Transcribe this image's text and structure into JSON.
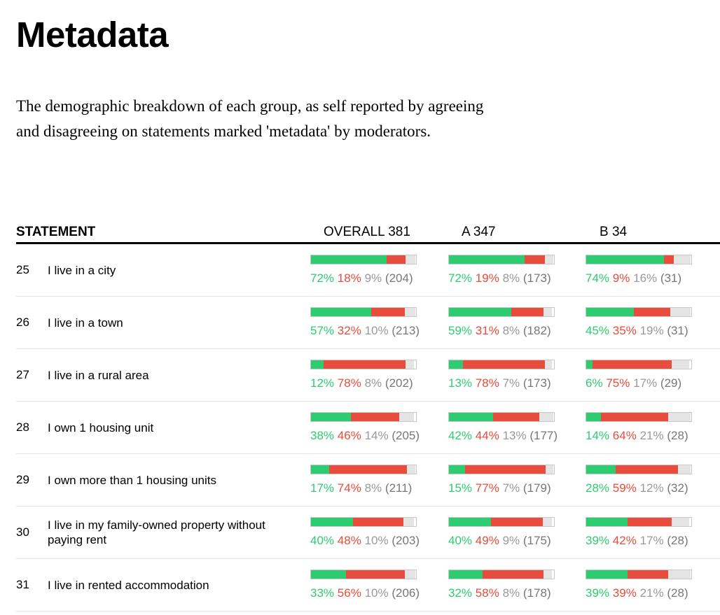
{
  "title": "Metadata",
  "intro": "The demographic breakdown of each group, as self reported by agreeing and disagreeing on statements marked 'metadata' by moderators.",
  "columns": {
    "statement": "STATEMENT",
    "groups": [
      "OVERALL 381",
      "A 347",
      "B 34"
    ]
  },
  "colors": {
    "agree": "#2ecc71",
    "disagree": "#e74c3c",
    "pass": "#e4e4e4"
  },
  "rows": [
    {
      "num": "25",
      "text": "I live in a city",
      "groups": [
        {
          "agree": 72,
          "disagree": 18,
          "pass": 9,
          "count": 204
        },
        {
          "agree": 72,
          "disagree": 19,
          "pass": 8,
          "count": 173
        },
        {
          "agree": 74,
          "disagree": 9,
          "pass": 16,
          "count": 31
        }
      ]
    },
    {
      "num": "26",
      "text": "I live in a town",
      "groups": [
        {
          "agree": 57,
          "disagree": 32,
          "pass": 10,
          "count": 213
        },
        {
          "agree": 59,
          "disagree": 31,
          "pass": 8,
          "count": 182
        },
        {
          "agree": 45,
          "disagree": 35,
          "pass": 19,
          "count": 31
        }
      ]
    },
    {
      "num": "27",
      "text": "I live in a rural area",
      "groups": [
        {
          "agree": 12,
          "disagree": 78,
          "pass": 8,
          "count": 202
        },
        {
          "agree": 13,
          "disagree": 78,
          "pass": 7,
          "count": 173
        },
        {
          "agree": 6,
          "disagree": 75,
          "pass": 17,
          "count": 29
        }
      ]
    },
    {
      "num": "28",
      "text": "I own 1 housing unit",
      "groups": [
        {
          "agree": 38,
          "disagree": 46,
          "pass": 14,
          "count": 205
        },
        {
          "agree": 42,
          "disagree": 44,
          "pass": 13,
          "count": 177
        },
        {
          "agree": 14,
          "disagree": 64,
          "pass": 21,
          "count": 28
        }
      ]
    },
    {
      "num": "29",
      "text": "I own more than 1 housing units",
      "groups": [
        {
          "agree": 17,
          "disagree": 74,
          "pass": 8,
          "count": 211
        },
        {
          "agree": 15,
          "disagree": 77,
          "pass": 7,
          "count": 179
        },
        {
          "agree": 28,
          "disagree": 59,
          "pass": 12,
          "count": 32
        }
      ]
    },
    {
      "num": "30",
      "text": "I live in my family-owned property without paying rent",
      "groups": [
        {
          "agree": 40,
          "disagree": 48,
          "pass": 10,
          "count": 203
        },
        {
          "agree": 40,
          "disagree": 49,
          "pass": 9,
          "count": 175
        },
        {
          "agree": 39,
          "disagree": 42,
          "pass": 17,
          "count": 28
        }
      ]
    },
    {
      "num": "31",
      "text": "I live in rented accommodation",
      "groups": [
        {
          "agree": 33,
          "disagree": 56,
          "pass": 10,
          "count": 206
        },
        {
          "agree": 32,
          "disagree": 58,
          "pass": 8,
          "count": 178
        },
        {
          "agree": 39,
          "disagree": 39,
          "pass": 21,
          "count": 28
        }
      ]
    }
  ]
}
